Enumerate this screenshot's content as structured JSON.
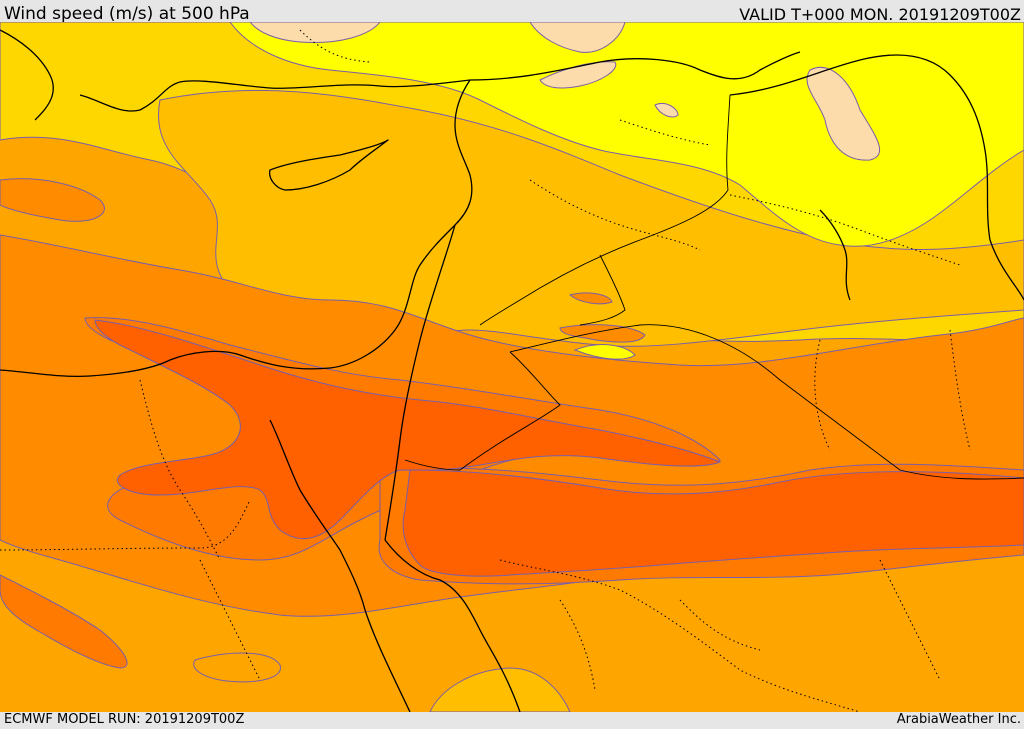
{
  "header": {
    "title": "Wind speed (m/s) at 500 hPa",
    "valid": "VALID T+000 MON. 20191209T00Z"
  },
  "footer": {
    "model_run": "ECMWF MODEL RUN: 20191209T00Z",
    "credit": "ArabiaWeather Inc."
  },
  "colors": {
    "pale": "#fcdcaa",
    "yellow": "#ffff00",
    "gold": "#ffd700",
    "amber": "#ffbf00",
    "orange_light": "#ffa500",
    "orange": "#ff8c00",
    "orange_dark": "#ff7a00",
    "red_orange": "#ff6000",
    "contour": "#7a5ea8"
  }
}
